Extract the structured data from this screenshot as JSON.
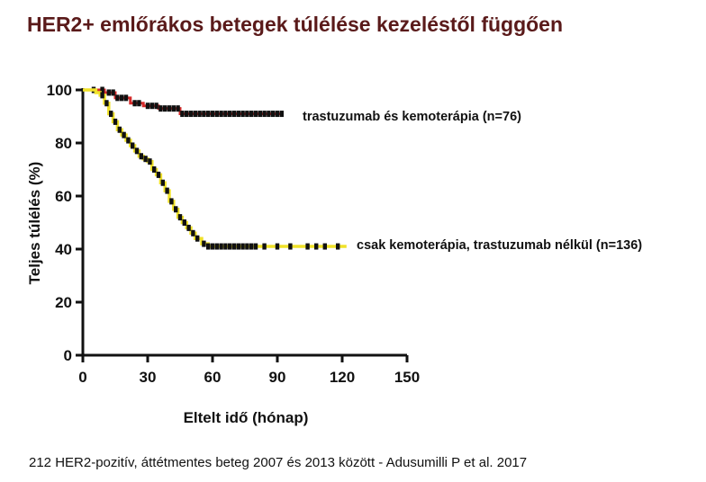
{
  "title": "HER2+ emlőrákos betegek túlélése kezeléstől függően",
  "footer": "212 HER2-pozitív, áttétmentes beteg 2007 és 2013 között - Adusumilli P et al. 2017",
  "colors": {
    "series_1": "#d42a2a",
    "series_2": "#f0e22a",
    "censor": "#111111",
    "title": "#5a1a1a"
  },
  "chart_data": {
    "type": "line",
    "xlabel": "Eltelt idő (hónap)",
    "ylabel": "Teljes túlélés (%)",
    "xlim": [
      0,
      150
    ],
    "ylim": [
      0,
      100
    ],
    "x_ticks": [
      "0",
      "30",
      "60",
      "90",
      "120",
      "150"
    ],
    "y_ticks": [
      "0",
      "20",
      "40",
      "60",
      "80",
      "100"
    ],
    "series": [
      {
        "name": "trastuzumab és kemoterápia (n=76)",
        "step": true,
        "points": [
          [
            0,
            100
          ],
          [
            8,
            100
          ],
          [
            10,
            99
          ],
          [
            15,
            97
          ],
          [
            22,
            95
          ],
          [
            28,
            94
          ],
          [
            35,
            93
          ],
          [
            45,
            91
          ],
          [
            92,
            91
          ]
        ],
        "censored_x": [
          5,
          9,
          12,
          14,
          16,
          18,
          20,
          24,
          26,
          30,
          32,
          34,
          36,
          38,
          40,
          42,
          44,
          46,
          48,
          50,
          52,
          54,
          56,
          58,
          60,
          62,
          64,
          66,
          68,
          70,
          72,
          74,
          76,
          78,
          80,
          82,
          84,
          86,
          88,
          90,
          92
        ]
      },
      {
        "name": "csak kemoterápia, trastuzumab nélkül (n=136)",
        "step": true,
        "points": [
          [
            0,
            100
          ],
          [
            6,
            99
          ],
          [
            8,
            98
          ],
          [
            10,
            95
          ],
          [
            12,
            91
          ],
          [
            14,
            88
          ],
          [
            16,
            85
          ],
          [
            18,
            83
          ],
          [
            20,
            81
          ],
          [
            22,
            79
          ],
          [
            24,
            77
          ],
          [
            26,
            75
          ],
          [
            28,
            74
          ],
          [
            30,
            73
          ],
          [
            32,
            70
          ],
          [
            34,
            68
          ],
          [
            36,
            65
          ],
          [
            38,
            62
          ],
          [
            40,
            58
          ],
          [
            42,
            55
          ],
          [
            44,
            52
          ],
          [
            46,
            50
          ],
          [
            48,
            48
          ],
          [
            50,
            46
          ],
          [
            52,
            44
          ],
          [
            55,
            42
          ],
          [
            58,
            41
          ],
          [
            122,
            41
          ]
        ],
        "censored_x": [
          9,
          11,
          13,
          15,
          17,
          19,
          21,
          23,
          25,
          27,
          29,
          31,
          33,
          35,
          37,
          39,
          41,
          43,
          45,
          47,
          49,
          51,
          53,
          56,
          58,
          60,
          62,
          64,
          66,
          68,
          70,
          72,
          74,
          76,
          78,
          80,
          84,
          90,
          96,
          104,
          108,
          112,
          118
        ]
      }
    ]
  }
}
